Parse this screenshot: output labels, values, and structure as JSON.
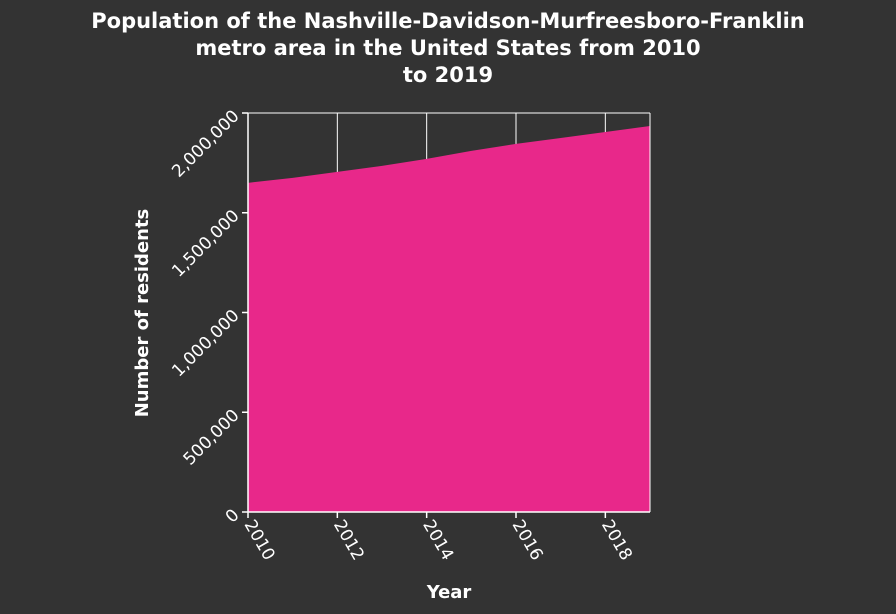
{
  "chart_data": {
    "type": "area",
    "title_lines": [
      "Population of the Nashville-Davidson-Murfreesboro-Franklin",
      "metro area in the United States from 2010",
      "to 2019"
    ],
    "xlabel": "Year",
    "ylabel": "Number of residents",
    "x": [
      2010,
      2011,
      2012,
      2013,
      2014,
      2015,
      2016,
      2017,
      2018,
      2019
    ],
    "series": [
      {
        "values": [
          1650000,
          1675000,
          1705000,
          1735000,
          1770000,
          1810000,
          1845000,
          1875000,
          1905000,
          1935000
        ]
      }
    ],
    "xlim": [
      2010,
      2019
    ],
    "ylim": [
      0,
      2000000
    ],
    "x_ticks": [
      "2010",
      "2012",
      "2014",
      "2016",
      "2018"
    ],
    "y_ticks": [
      "0",
      "500,000",
      "1,000,000",
      "1,500,000",
      "2,000,000"
    ],
    "grid": true,
    "colors": {
      "fill": "#e8288a",
      "background": "#333333",
      "grid": "#ffffff"
    }
  }
}
